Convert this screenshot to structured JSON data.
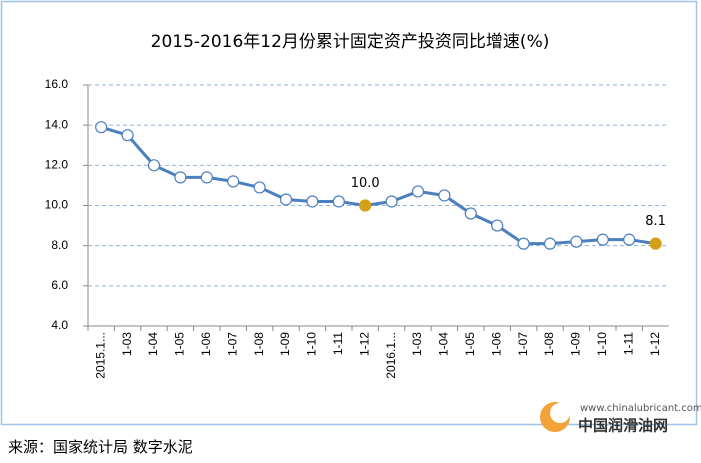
{
  "chart_data": {
    "type": "line",
    "title": "2015-2016年12月份累计固定资产投资同比增速(%)",
    "categories": [
      "2015.1...",
      "1-03",
      "1-04",
      "1-05",
      "1-06",
      "1-07",
      "1-08",
      "1-09",
      "1-10",
      "1-11",
      "1-12",
      "2016.1...",
      "1-03",
      "1-04",
      "1-05",
      "1-06",
      "1-07",
      "1-08",
      "1-09",
      "1-10",
      "1-11",
      "1-12"
    ],
    "series": [
      {
        "color": "#4a7fc0",
        "values": [
          13.9,
          13.5,
          12.0,
          11.4,
          11.4,
          11.2,
          10.9,
          10.3,
          10.2,
          10.2,
          10.0,
          10.2,
          10.7,
          10.5,
          9.6,
          9.0,
          8.1,
          8.1,
          8.2,
          8.3,
          8.3,
          8.1
        ],
        "value_labels": [
          null,
          null,
          null,
          null,
          null,
          null,
          null,
          null,
          null,
          null,
          "10.0",
          null,
          null,
          null,
          null,
          null,
          null,
          null,
          null,
          null,
          null,
          "8.1"
        ],
        "highlight_color": "#d4a017"
      }
    ],
    "ylim": [
      4,
      16
    ],
    "yticks": [
      {
        "value": 4,
        "label": "4.0"
      },
      {
        "value": 6,
        "label": "6.0"
      },
      {
        "value": 8,
        "label": "8.0"
      },
      {
        "value": 10,
        "label": "10.0"
      },
      {
        "value": 12,
        "label": "12.0"
      },
      {
        "value": 14,
        "label": "14.0"
      },
      {
        "value": 16,
        "label": "16.0"
      }
    ],
    "grid": true,
    "source": "来源：国家统计局 数字水泥",
    "logo_url": "www.chinalubricant.com",
    "logo_name": "中国润滑油网"
  }
}
